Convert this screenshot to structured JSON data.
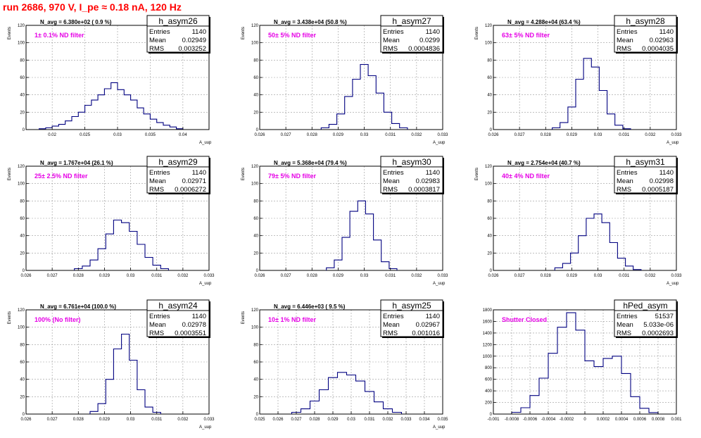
{
  "page": {
    "title": "run 2686,   970 V, I_pe ≈ 0.18 nA, 120 Hz"
  },
  "chart_data": [
    {
      "type": "histogram",
      "name": "h_asym26",
      "n_avg": "N_avg = 6.380e+02 ( 0.9 %)",
      "filter": "1± 0.1% ND filter",
      "stats": {
        "entries": "1140",
        "mean": "0.02949",
        "rms": "0.003252"
      },
      "stat_labels": [
        "Entries",
        "Mean",
        "RMS"
      ],
      "ylabel": "Events",
      "xlabel": "A_uup",
      "xlim": [
        0.016,
        0.044
      ],
      "ylim": [
        0,
        120
      ],
      "xticks": [
        "0.02",
        "0.025",
        "0.03",
        "0.035",
        "0.04"
      ],
      "yticks": [
        "0",
        "20",
        "40",
        "60",
        "80",
        "100",
        "120"
      ],
      "centers": [
        0.0185,
        0.0195,
        0.0205,
        0.0215,
        0.0225,
        0.0235,
        0.0245,
        0.0255,
        0.0265,
        0.0275,
        0.0285,
        0.0295,
        0.0305,
        0.0315,
        0.0325,
        0.0335,
        0.0345,
        0.0355,
        0.0365,
        0.0375,
        0.0385,
        0.0395
      ],
      "values": [
        1,
        2,
        4,
        6,
        10,
        15,
        20,
        28,
        34,
        40,
        47,
        54,
        46,
        40,
        34,
        25,
        18,
        12,
        8,
        5,
        3,
        1
      ]
    },
    {
      "type": "histogram",
      "name": "h_asym27",
      "n_avg": "N_avg = 3.438e+04 (50.8 %)",
      "filter": "50± 5% ND filter",
      "stats": {
        "entries": "1140",
        "mean": "0.0299",
        "rms": "0.0004836"
      },
      "stat_labels": [
        "Entries",
        "Mean",
        "RMS"
      ],
      "ylabel": "Events",
      "xlabel": "A_uup",
      "xlim": [
        0.026,
        0.033
      ],
      "ylim": [
        0,
        120
      ],
      "xticks": [
        "0.026",
        "0.027",
        "0.028",
        "0.029",
        "0.03",
        "0.031",
        "0.032",
        "0.033"
      ],
      "yticks": [
        "0",
        "20",
        "40",
        "60",
        "80",
        "100",
        "120"
      ],
      "centers": [
        0.0285,
        0.0288,
        0.0291,
        0.0294,
        0.0297,
        0.03,
        0.0303,
        0.0306,
        0.0309,
        0.0312,
        0.0315
      ],
      "values": [
        2,
        6,
        18,
        38,
        58,
        75,
        62,
        42,
        20,
        7,
        2
      ]
    },
    {
      "type": "histogram",
      "name": "h_asym28",
      "n_avg": "N_avg = 4.288e+04 (63.4 %)",
      "filter": "63± 5% ND filter",
      "stats": {
        "entries": "1140",
        "mean": "0.02963",
        "rms": "0.0004035"
      },
      "stat_labels": [
        "Entries",
        "Mean",
        "RMS"
      ],
      "ylabel": "Events",
      "xlabel": "A_uup",
      "xlim": [
        0.026,
        0.033
      ],
      "ylim": [
        0,
        120
      ],
      "xticks": [
        "0.026",
        "0.027",
        "0.028",
        "0.029",
        "0.03",
        "0.031",
        "0.032",
        "0.033"
      ],
      "yticks": [
        "0",
        "20",
        "40",
        "60",
        "80",
        "100",
        "120"
      ],
      "centers": [
        0.0284,
        0.0287,
        0.029,
        0.0293,
        0.0296,
        0.0299,
        0.0302,
        0.0305,
        0.0308,
        0.0311
      ],
      "values": [
        2,
        8,
        26,
        58,
        82,
        72,
        45,
        18,
        5,
        1
      ]
    },
    {
      "type": "histogram",
      "name": "h_asym29",
      "n_avg": "N_avg = 1.767e+04 (26.1 %)",
      "filter": "25± 2.5% ND filter",
      "stats": {
        "entries": "1140",
        "mean": "0.02971",
        "rms": "0.0006272"
      },
      "stat_labels": [
        "Entries",
        "Mean",
        "RMS"
      ],
      "ylabel": "Events",
      "xlabel": "A_uup",
      "xlim": [
        0.026,
        0.033
      ],
      "ylim": [
        0,
        120
      ],
      "xticks": [
        "0.026",
        "0.027",
        "0.028",
        "0.029",
        "0.03",
        "0.031",
        "0.032",
        "0.033"
      ],
      "yticks": [
        "0",
        "20",
        "40",
        "60",
        "80",
        "100",
        "120"
      ],
      "centers": [
        0.028,
        0.0283,
        0.0286,
        0.0289,
        0.0292,
        0.0295,
        0.0298,
        0.0301,
        0.0304,
        0.0307,
        0.031,
        0.0313
      ],
      "values": [
        2,
        5,
        12,
        25,
        42,
        58,
        55,
        45,
        30,
        15,
        6,
        2
      ]
    },
    {
      "type": "histogram",
      "name": "h_asym30",
      "n_avg": "N_avg = 5.368e+04 (79.4 %)",
      "filter": "79± 5% ND filter",
      "stats": {
        "entries": "1140",
        "mean": "0.02983",
        "rms": "0.0003817"
      },
      "stat_labels": [
        "Entries",
        "Mean",
        "RMS"
      ],
      "ylabel": "Events",
      "xlabel": "A_uup",
      "xlim": [
        0.026,
        0.033
      ],
      "ylim": [
        0,
        120
      ],
      "xticks": [
        "0.026",
        "0.027",
        "0.028",
        "0.029",
        "0.03",
        "0.031",
        "0.032",
        "0.033"
      ],
      "yticks": [
        "0",
        "20",
        "40",
        "60",
        "80",
        "100",
        "120"
      ],
      "centers": [
        0.0287,
        0.029,
        0.0293,
        0.0296,
        0.0299,
        0.0302,
        0.0305,
        0.0308,
        0.0311
      ],
      "values": [
        3,
        12,
        38,
        68,
        80,
        65,
        35,
        10,
        2
      ]
    },
    {
      "type": "histogram",
      "name": "h_asym31",
      "n_avg": "N_avg = 2.754e+04 (40.7 %)",
      "filter": "40± 4% ND filter",
      "stats": {
        "entries": "1140",
        "mean": "0.02998",
        "rms": "0.0005187"
      },
      "stat_labels": [
        "Entries",
        "Mean",
        "RMS"
      ],
      "ylabel": "Events",
      "xlabel": "A_uup",
      "xlim": [
        0.026,
        0.033
      ],
      "ylim": [
        0,
        120
      ],
      "xticks": [
        "0.026",
        "0.027",
        "0.028",
        "0.029",
        "0.03",
        "0.031",
        "0.032",
        "0.033"
      ],
      "yticks": [
        "0",
        "20",
        "40",
        "60",
        "80",
        "100",
        "120"
      ],
      "centers": [
        0.0285,
        0.0288,
        0.0291,
        0.0294,
        0.0297,
        0.03,
        0.0303,
        0.0306,
        0.0309,
        0.0312,
        0.0315
      ],
      "values": [
        3,
        8,
        20,
        40,
        60,
        65,
        55,
        32,
        14,
        5,
        1
      ]
    },
    {
      "type": "histogram",
      "name": "h_asym24",
      "n_avg": "N_avg = 6.761e+04 (100.0 %)",
      "filter": "100% (No filter)",
      "stats": {
        "entries": "1140",
        "mean": "0.02978",
        "rms": "0.0003551"
      },
      "stat_labels": [
        "Entries",
        "Mean",
        "RMS"
      ],
      "ylabel": "Events",
      "xlabel": "A_uup",
      "xlim": [
        0.026,
        0.033
      ],
      "ylim": [
        0,
        120
      ],
      "xticks": [
        "0.026",
        "0.027",
        "0.028",
        "0.029",
        "0.03",
        "0.031",
        "0.032",
        "0.033"
      ],
      "yticks": [
        "0",
        "20",
        "40",
        "60",
        "80",
        "100",
        "120"
      ],
      "centers": [
        0.0286,
        0.0289,
        0.0292,
        0.0295,
        0.0298,
        0.0301,
        0.0304,
        0.0307,
        0.031
      ],
      "values": [
        3,
        12,
        40,
        75,
        92,
        62,
        28,
        8,
        2
      ]
    },
    {
      "type": "histogram",
      "name": "h_asym25",
      "n_avg": "N_avg = 6.446e+03 ( 9.5 %)",
      "filter": "10± 1% ND filter",
      "stats": {
        "entries": "1140",
        "mean": "0.02967",
        "rms": "0.001016"
      },
      "stat_labels": [
        "Entries",
        "Mean",
        "RMS"
      ],
      "ylabel": "Events",
      "xlabel": "A_uup",
      "xlim": [
        0.025,
        0.035
      ],
      "ylim": [
        0,
        120
      ],
      "xticks": [
        "0.025",
        "0.026",
        "0.027",
        "0.028",
        "0.029",
        "0.03",
        "0.031",
        "0.032",
        "0.033",
        "0.034",
        "0.035"
      ],
      "yticks": [
        "0",
        "20",
        "40",
        "60",
        "80",
        "100",
        "120"
      ],
      "centers": [
        0.027,
        0.0275,
        0.028,
        0.0285,
        0.029,
        0.0295,
        0.03,
        0.0305,
        0.031,
        0.0315,
        0.032,
        0.0325
      ],
      "values": [
        2,
        6,
        15,
        28,
        42,
        48,
        45,
        38,
        26,
        14,
        6,
        2
      ]
    },
    {
      "type": "histogram",
      "name": "hPed_asym",
      "n_avg": "",
      "filter": "Shutter Closed",
      "stats": {
        "entries": "51537",
        "mean": "5.033e-06",
        "rms": "0.0002693"
      },
      "stat_labels": [
        "Entries",
        "Mean",
        "RMS"
      ],
      "ylabel": "",
      "xlabel": "",
      "xlim": [
        -0.001,
        0.001
      ],
      "ylim": [
        0,
        1800
      ],
      "xticks": [
        "-0.001",
        "-0.0008",
        "-0.0006",
        "-0.0004",
        "-0.0002",
        "0",
        "0.0002",
        "0.0004",
        "0.0006",
        "0.0008",
        "0.001"
      ],
      "yticks": [
        "0",
        "200",
        "400",
        "600",
        "800",
        "1000",
        "1200",
        "1400",
        "1600",
        "1800"
      ],
      "centers": [
        -0.00075,
        -0.00065,
        -0.00055,
        -0.00045,
        -0.00035,
        -0.00025,
        -0.00015,
        -5e-05,
        5e-05,
        0.00015,
        0.00025,
        0.00035,
        0.00045,
        0.00055,
        0.00065,
        0.00075
      ],
      "values": [
        30,
        110,
        320,
        620,
        1050,
        1500,
        1750,
        1450,
        920,
        820,
        960,
        1000,
        700,
        300,
        100,
        25
      ]
    }
  ]
}
